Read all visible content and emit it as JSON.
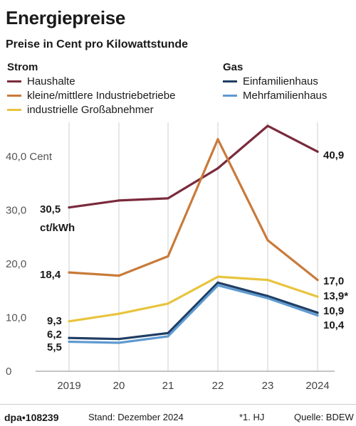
{
  "title": "Energiepreise",
  "subtitle": "Preise in Cent pro Kilowattstunde",
  "legend": {
    "strom_title": "Strom",
    "gas_title": "Gas",
    "strom_items": [
      "Haushalte",
      "kleine/mittlere Industriebetriebe",
      "industrielle Großabnehmer"
    ],
    "gas_items": [
      "Einfamilienhaus",
      "Mehrfamilienhaus"
    ]
  },
  "footer": {
    "source_id": "dpa•108239",
    "stand": "Stand: Dezember 2024",
    "note": "*1. HJ",
    "quelle": "Quelle: BDEW"
  },
  "chart_data": {
    "type": "line",
    "title": "Energiepreise",
    "subtitle": "Preise in Cent pro Kilowattstunde",
    "x": [
      "2019",
      "20",
      "21",
      "22",
      "23",
      "2024"
    ],
    "ylim": [
      0,
      50
    ],
    "y_ticks": [
      0,
      10,
      20,
      30,
      40
    ],
    "y_tick_labels": [
      "0",
      "10,0",
      "20,0",
      "30,0",
      "40,0 Cent"
    ],
    "grid": "vertical",
    "series": [
      {
        "name": "Haushalte",
        "group": "Strom",
        "color": "#7a2a3c",
        "values": [
          30.5,
          31.8,
          32.2,
          37.8,
          45.7,
          40.9
        ]
      },
      {
        "name": "kleine/mittlere Industriebetriebe",
        "group": "Strom",
        "color": "#c97a3a",
        "values": [
          18.4,
          17.8,
          21.4,
          43.2,
          24.4,
          17.0
        ]
      },
      {
        "name": "industrielle Großabnehmer",
        "group": "Strom",
        "color": "#e8c43e",
        "values": [
          9.3,
          10.7,
          12.6,
          17.6,
          17.0,
          13.9
        ]
      },
      {
        "name": "Einfamilienhaus",
        "group": "Gas",
        "color": "#1f3e64",
        "values": [
          6.2,
          6.0,
          7.1,
          16.5,
          14.0,
          10.9
        ]
      },
      {
        "name": "Mehrfamilienhaus",
        "group": "Gas",
        "color": "#5e9ad0",
        "values": [
          5.5,
          5.3,
          6.5,
          16.0,
          13.6,
          10.4
        ]
      }
    ],
    "start_labels": [
      "30,5",
      "ct/kWh",
      "18,4",
      "9,3",
      "6,2",
      "5,5"
    ],
    "end_labels": [
      "40,9",
      "17,0",
      "13,9*",
      "10,9",
      "10,4"
    ]
  }
}
